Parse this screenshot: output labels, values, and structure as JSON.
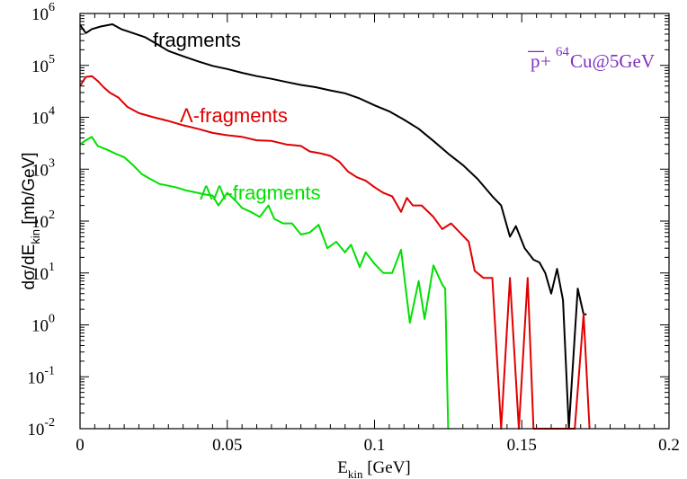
{
  "chart_data": {
    "type": "line",
    "xlabel": {
      "main": "E",
      "sub": "kin",
      "unit": " [GeV]"
    },
    "ylabel": {
      "prefix": "dσ/dE",
      "sub": "kin",
      "unit": " [mb/GeV]"
    },
    "xlim": [
      0,
      0.2
    ],
    "ylim_log10": [
      -2,
      6
    ],
    "yscale": "log",
    "x_ticks": [
      "0",
      "0.05",
      "0.1",
      "0.15",
      "0.2"
    ],
    "x_tick_values": [
      0,
      0.05,
      0.1,
      0.15,
      0.2
    ],
    "y_ticks": [
      {
        "base": "10",
        "exp": "-2"
      },
      {
        "base": "10",
        "exp": "-1"
      },
      {
        "base": "10",
        "exp": "0"
      },
      {
        "base": "10",
        "exp": "1"
      },
      {
        "base": "10",
        "exp": "2"
      },
      {
        "base": "10",
        "exp": "3"
      },
      {
        "base": "10",
        "exp": "4"
      },
      {
        "base": "10",
        "exp": "5"
      },
      {
        "base": "10",
        "exp": "6"
      }
    ],
    "annotation": {
      "bar_letter": "p",
      "plus": "+",
      "mass": "64",
      "rest": "Cu@5GeV",
      "color": "#8030c0"
    },
    "grid": false,
    "series": [
      {
        "name": "fragments",
        "color": "#000000",
        "points": [
          [
            0,
            600000
          ],
          [
            0.002,
            420000
          ],
          [
            0.004,
            500000
          ],
          [
            0.007,
            560000
          ],
          [
            0.011,
            620000
          ],
          [
            0.014,
            500000
          ],
          [
            0.018,
            420000
          ],
          [
            0.022,
            350000
          ],
          [
            0.026,
            260000
          ],
          [
            0.03,
            190000
          ],
          [
            0.035,
            150000
          ],
          [
            0.04,
            120000
          ],
          [
            0.045,
            98000
          ],
          [
            0.05,
            85000
          ],
          [
            0.055,
            72000
          ],
          [
            0.06,
            62000
          ],
          [
            0.065,
            55000
          ],
          [
            0.07,
            48000
          ],
          [
            0.075,
            42000
          ],
          [
            0.08,
            38000
          ],
          [
            0.085,
            33000
          ],
          [
            0.09,
            29000
          ],
          [
            0.095,
            23000
          ],
          [
            0.1,
            17000
          ],
          [
            0.105,
            13000
          ],
          [
            0.11,
            9000
          ],
          [
            0.115,
            6000
          ],
          [
            0.12,
            3500
          ],
          [
            0.125,
            2000
          ],
          [
            0.13,
            1200
          ],
          [
            0.135,
            650
          ],
          [
            0.14,
            300
          ],
          [
            0.143,
            200
          ],
          [
            0.146,
            50
          ],
          [
            0.148,
            80
          ],
          [
            0.151,
            30
          ],
          [
            0.154,
            18
          ],
          [
            0.156,
            16
          ],
          [
            0.158,
            10
          ],
          [
            0.16,
            4
          ],
          [
            0.162,
            12
          ],
          [
            0.164,
            3
          ],
          [
            0.166,
            0.01
          ],
          [
            0.169,
            5
          ],
          [
            0.171,
            1.6
          ],
          [
            0.172,
            1.6
          ]
        ]
      },
      {
        "name": "Λ-fragments",
        "color": "#e00000",
        "points": [
          [
            0,
            40000
          ],
          [
            0.002,
            60000
          ],
          [
            0.004,
            62000
          ],
          [
            0.006,
            50000
          ],
          [
            0.008,
            38000
          ],
          [
            0.01,
            30000
          ],
          [
            0.013,
            24000
          ],
          [
            0.016,
            16000
          ],
          [
            0.02,
            12000
          ],
          [
            0.025,
            10000
          ],
          [
            0.03,
            8500
          ],
          [
            0.035,
            7000
          ],
          [
            0.04,
            6000
          ],
          [
            0.045,
            5000
          ],
          [
            0.05,
            4500
          ],
          [
            0.055,
            4200
          ],
          [
            0.06,
            3600
          ],
          [
            0.065,
            3500
          ],
          [
            0.07,
            3000
          ],
          [
            0.075,
            2800
          ],
          [
            0.078,
            2200
          ],
          [
            0.082,
            2000
          ],
          [
            0.085,
            1800
          ],
          [
            0.088,
            1400
          ],
          [
            0.091,
            900
          ],
          [
            0.094,
            700
          ],
          [
            0.097,
            600
          ],
          [
            0.1,
            450
          ],
          [
            0.103,
            350
          ],
          [
            0.106,
            300
          ],
          [
            0.109,
            150
          ],
          [
            0.111,
            280
          ],
          [
            0.113,
            200
          ],
          [
            0.116,
            200
          ],
          [
            0.12,
            120
          ],
          [
            0.123,
            70
          ],
          [
            0.126,
            90
          ],
          [
            0.129,
            60
          ],
          [
            0.132,
            40
          ],
          [
            0.134,
            11
          ],
          [
            0.137,
            8
          ],
          [
            0.14,
            8
          ],
          [
            0.143,
            0.01
          ],
          [
            0.146,
            8
          ],
          [
            0.149,
            0.01
          ],
          [
            0.152,
            8
          ],
          [
            0.154,
            0.01
          ],
          [
            0.168,
            0.01
          ],
          [
            0.171,
            1.6
          ],
          [
            0.173,
            0.01
          ]
        ]
      },
      {
        "name": "ΛΛ-fragments",
        "color": "#00e000",
        "points": [
          [
            0,
            3000
          ],
          [
            0.002,
            3600
          ],
          [
            0.004,
            4200
          ],
          [
            0.006,
            2800
          ],
          [
            0.009,
            2400
          ],
          [
            0.012,
            2000
          ],
          [
            0.015,
            1700
          ],
          [
            0.018,
            1200
          ],
          [
            0.021,
            800
          ],
          [
            0.024,
            640
          ],
          [
            0.027,
            520
          ],
          [
            0.03,
            480
          ],
          [
            0.033,
            440
          ],
          [
            0.036,
            390
          ],
          [
            0.039,
            360
          ],
          [
            0.042,
            330
          ],
          [
            0.045,
            310
          ],
          [
            0.047,
            200
          ],
          [
            0.05,
            350
          ],
          [
            0.053,
            240
          ],
          [
            0.055,
            180
          ],
          [
            0.058,
            150
          ],
          [
            0.061,
            120
          ],
          [
            0.064,
            200
          ],
          [
            0.066,
            110
          ],
          [
            0.069,
            90
          ],
          [
            0.072,
            90
          ],
          [
            0.075,
            55
          ],
          [
            0.078,
            60
          ],
          [
            0.081,
            85
          ],
          [
            0.084,
            30
          ],
          [
            0.087,
            40
          ],
          [
            0.09,
            25
          ],
          [
            0.092,
            35
          ],
          [
            0.095,
            13
          ],
          [
            0.097,
            25
          ],
          [
            0.1,
            15
          ],
          [
            0.103,
            10
          ],
          [
            0.106,
            10
          ],
          [
            0.109,
            28
          ],
          [
            0.112,
            1.1
          ],
          [
            0.115,
            7
          ],
          [
            0.117,
            1.3
          ],
          [
            0.12,
            14
          ],
          [
            0.123,
            6
          ],
          [
            0.124,
            5
          ],
          [
            0.125,
            0.01
          ]
        ]
      }
    ],
    "labels_colors": {
      "fragments": "#000000",
      "lambda": "#e00000",
      "lambdalambda": "#00e000"
    }
  }
}
